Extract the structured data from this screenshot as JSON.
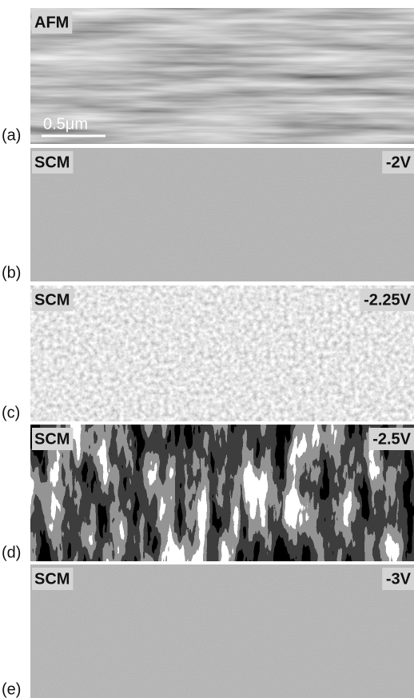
{
  "panels": [
    {
      "label": "(a)",
      "mode": "AFM",
      "scale_bar": "0.5μm"
    },
    {
      "label": "(b)",
      "mode": "SCM",
      "voltage": "-2V"
    },
    {
      "label": "(c)",
      "mode": "SCM",
      "voltage": "-2.25V"
    },
    {
      "label": "(d)",
      "mode": "SCM",
      "voltage": "-2.5V"
    },
    {
      "label": "(e)",
      "mode": "SCM",
      "voltage": "-3V"
    }
  ]
}
